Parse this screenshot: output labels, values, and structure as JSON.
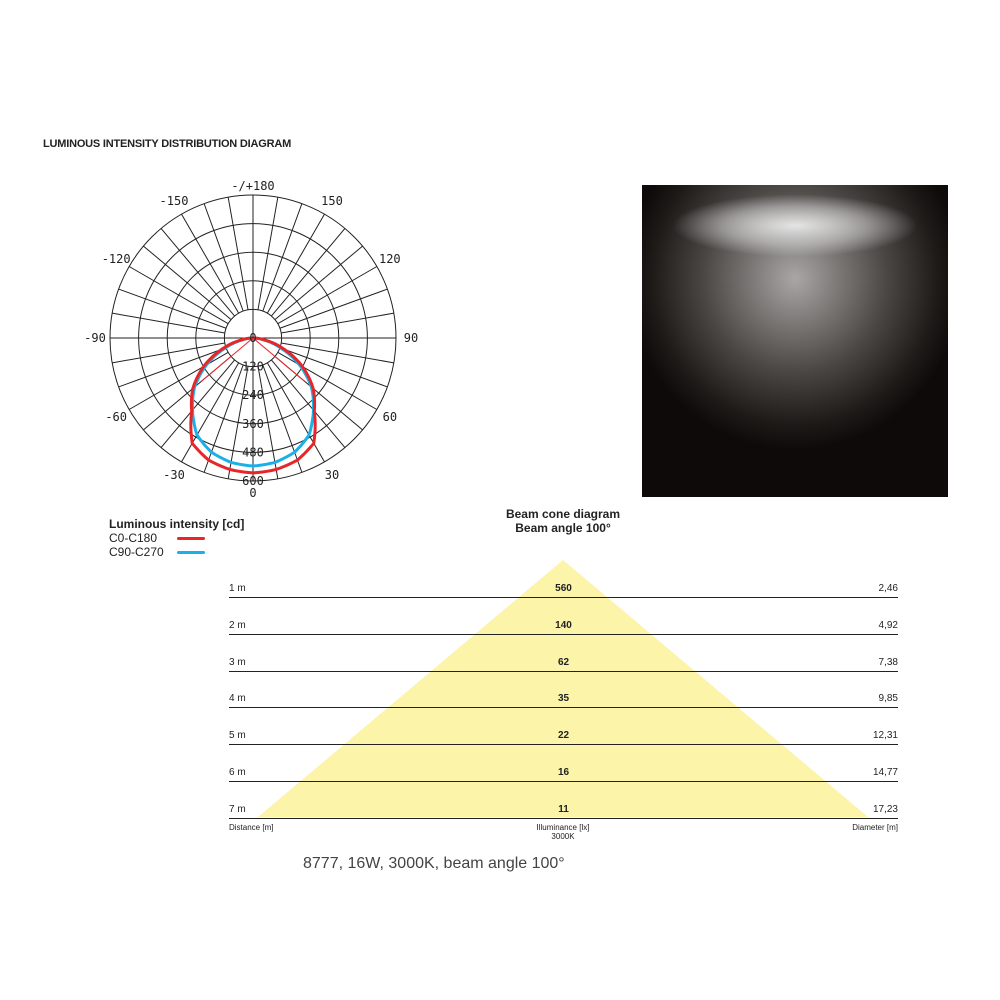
{
  "title": "LUMINOUS INTENSITY DISTRIBUTION DIAGRAM",
  "polar": {
    "angle_labels": [
      {
        "angle": 180,
        "label": "-/+180"
      },
      {
        "angle": 150,
        "label": "150"
      },
      {
        "angle": -150,
        "label": "-150"
      },
      {
        "angle": 120,
        "label": "120"
      },
      {
        "angle": -120,
        "label": "-120"
      },
      {
        "angle": 90,
        "label": "90"
      },
      {
        "angle": -90,
        "label": "-90"
      },
      {
        "angle": 60,
        "label": "60"
      },
      {
        "angle": -60,
        "label": "-60"
      },
      {
        "angle": 30,
        "label": "30"
      },
      {
        "angle": -30,
        "label": "-30"
      },
      {
        "angle": 0,
        "label": "0"
      }
    ],
    "ring_labels": [
      "0",
      "120",
      "240",
      "360",
      "480",
      "600"
    ],
    "rmax": 600,
    "grid_step_deg": 10
  },
  "chart_data": {
    "type": "polar",
    "unit": "cd",
    "angles": [
      0,
      10,
      20,
      30,
      40,
      50,
      60,
      70,
      80,
      90
    ],
    "series": [
      {
        "name": "C0-C180",
        "color": "#e8262a",
        "values": [
          566,
          560,
          545,
          510,
          400,
          330,
          240,
          140,
          55,
          0
        ]
      },
      {
        "name": "C90-C270",
        "color": "#1ab0e8",
        "values": [
          537,
          530,
          510,
          470,
          395,
          320,
          225,
          125,
          45,
          0
        ]
      }
    ],
    "beam_angle_deg": 100
  },
  "legend": {
    "title": "Luminous intensity [cd]",
    "items": [
      {
        "label": "C0-C180",
        "color": "#e8262a"
      },
      {
        "label": "C90-C270",
        "color": "#1ab0e8"
      }
    ]
  },
  "beam": {
    "title": "Beam cone diagram",
    "subtitle": "Beam angle 100°",
    "cone_color": "#fbf4a9",
    "rows": [
      {
        "distance": "1 m",
        "illuminance": "560",
        "diameter": "2,46"
      },
      {
        "distance": "2 m",
        "illuminance": "140",
        "diameter": "4,92"
      },
      {
        "distance": "3 m",
        "illuminance": "62",
        "diameter": "7,38"
      },
      {
        "distance": "4 m",
        "illuminance": "35",
        "diameter": "9,85"
      },
      {
        "distance": "5 m",
        "illuminance": "22",
        "diameter": "12,31"
      },
      {
        "distance": "6 m",
        "illuminance": "16",
        "diameter": "14,77"
      },
      {
        "distance": "7 m",
        "illuminance": "11",
        "diameter": "17,23"
      }
    ],
    "footer": {
      "distance": "Distance [m]",
      "illuminance": "Illuminance [lx]",
      "cct": "3000K",
      "diameter": "Diameter [m]"
    }
  },
  "caption": "8777, 16W, 3000K, beam angle 100°"
}
